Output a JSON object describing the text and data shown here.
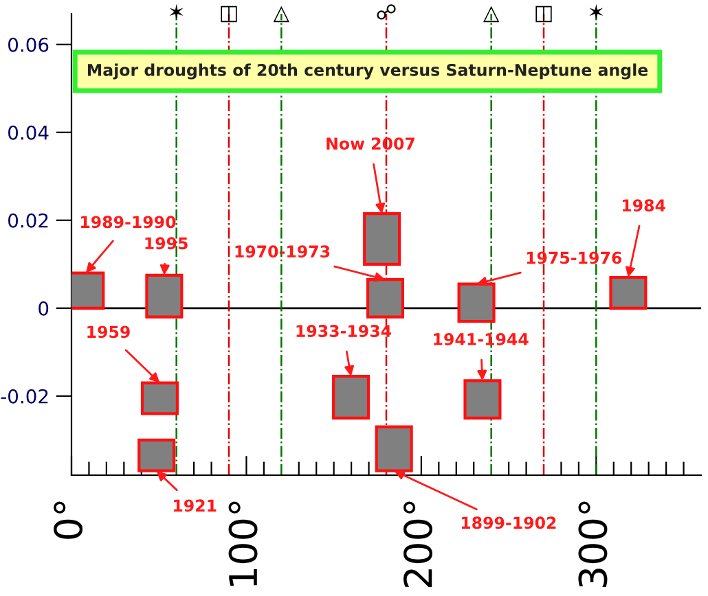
{
  "chart_data": {
    "type": "bar",
    "title": "Major droughts of 20th century versus Saturn-Neptune angle",
    "x": [
      8.2,
      48.6,
      50.5,
      53,
      159.8,
      177.5,
      179.4,
      184.4,
      231.5,
      235,
      318.3
    ],
    "color": "#808080",
    "base": [
      0,
      -0.037,
      -0.024,
      -0.002,
      -0.025,
      0.01,
      -0.002,
      -0.037,
      -0.003,
      -0.025,
      0
    ],
    "values": [
      0.008,
      0.007,
      0.007,
      0.0095,
      0.0095,
      0.0115,
      0.0085,
      0.01,
      0.0085,
      0.0085,
      0.007
    ],
    "annotations": [
      {
        "text": "1989-1990",
        "x": 8.2,
        "y": 0.008
      },
      {
        "text": "1921",
        "x": 48.6,
        "y": -0.037
      },
      {
        "text": "1959",
        "x": 50.5,
        "y": -0.017
      },
      {
        "text": "1995",
        "x": 53,
        "y": 0.0075
      },
      {
        "text": "1933-1934",
        "x": 159.8,
        "y": -0.0155
      },
      {
        "text": "Now 2007",
        "x": 177.5,
        "y": 0.0215
      },
      {
        "text": "1970-1973",
        "x": 179.4,
        "y": 0.0065
      },
      {
        "text": "1899-1902",
        "x": 184.4,
        "y": -0.037
      },
      {
        "text": "1975-1976",
        "x": 231.5,
        "y": 0.0055
      },
      {
        "text": "1941-1944",
        "x": 235,
        "y": -0.0165
      },
      {
        "text": "1984",
        "x": 318.3,
        "y": 0.007
      }
    ],
    "ref_lines": [
      {
        "axis": "y",
        "value": 0,
        "label": null,
        "color": "#000000",
        "line_style": "solid"
      },
      {
        "axis": "x",
        "value": 60,
        "label": "✶",
        "color": "#007700",
        "line_style": "dashdot"
      },
      {
        "axis": "x",
        "value": 90,
        "label": "◫",
        "color": "#dd0000",
        "line_style": "dashdot"
      },
      {
        "axis": "x",
        "value": 120,
        "label": "△",
        "color": "#007700",
        "line_style": "dashdot"
      },
      {
        "axis": "x",
        "value": 180,
        "label": "☍",
        "color": "#dd0000",
        "line_style": "dashdot"
      },
      {
        "axis": "x",
        "value": 240,
        "label": "△",
        "color": "#007700",
        "line_style": "dashdot"
      },
      {
        "axis": "x",
        "value": 270,
        "label": "◫",
        "color": "#dd0000",
        "line_style": "dashdot"
      },
      {
        "axis": "x",
        "value": 300,
        "label": "✶",
        "color": "#007700",
        "line_style": "dashdot"
      }
    ],
    "xlim": [
      0,
      360
    ],
    "xticks": [
      {
        "value": 0,
        "label": "0°"
      },
      {
        "value": 10,
        "label": null
      },
      {
        "value": 20,
        "label": null
      },
      {
        "value": 30,
        "label": null
      },
      {
        "value": 40,
        "label": null
      },
      {
        "value": 50,
        "label": null
      },
      {
        "value": 70,
        "label": null
      },
      {
        "value": 80,
        "label": null
      },
      {
        "value": 100,
        "label": "100°"
      },
      {
        "value": 110,
        "label": null
      },
      {
        "value": 130,
        "label": null
      },
      {
        "value": 140,
        "label": null
      },
      {
        "value": 150,
        "label": null
      },
      {
        "value": 160,
        "label": null
      },
      {
        "value": 170,
        "label": null
      },
      {
        "value": 190,
        "label": null
      },
      {
        "value": 200,
        "label": "200°"
      },
      {
        "value": 210,
        "label": null
      },
      {
        "value": 220,
        "label": null
      },
      {
        "value": 230,
        "label": null
      },
      {
        "value": 250,
        "label": null
      },
      {
        "value": 260,
        "label": null
      },
      {
        "value": 280,
        "label": null
      },
      {
        "value": 290,
        "label": null
      },
      {
        "value": 300,
        "label": "300°"
      },
      {
        "value": 310,
        "label": null
      },
      {
        "value": 320,
        "label": null
      },
      {
        "value": 330,
        "label": null
      },
      {
        "value": 340,
        "label": null
      },
      {
        "value": 350,
        "label": null
      }
    ],
    "ylim": [
      -0.038,
      0.067
    ],
    "yticks": [
      -0.02,
      0,
      0.02,
      0.04,
      0.06
    ]
  }
}
